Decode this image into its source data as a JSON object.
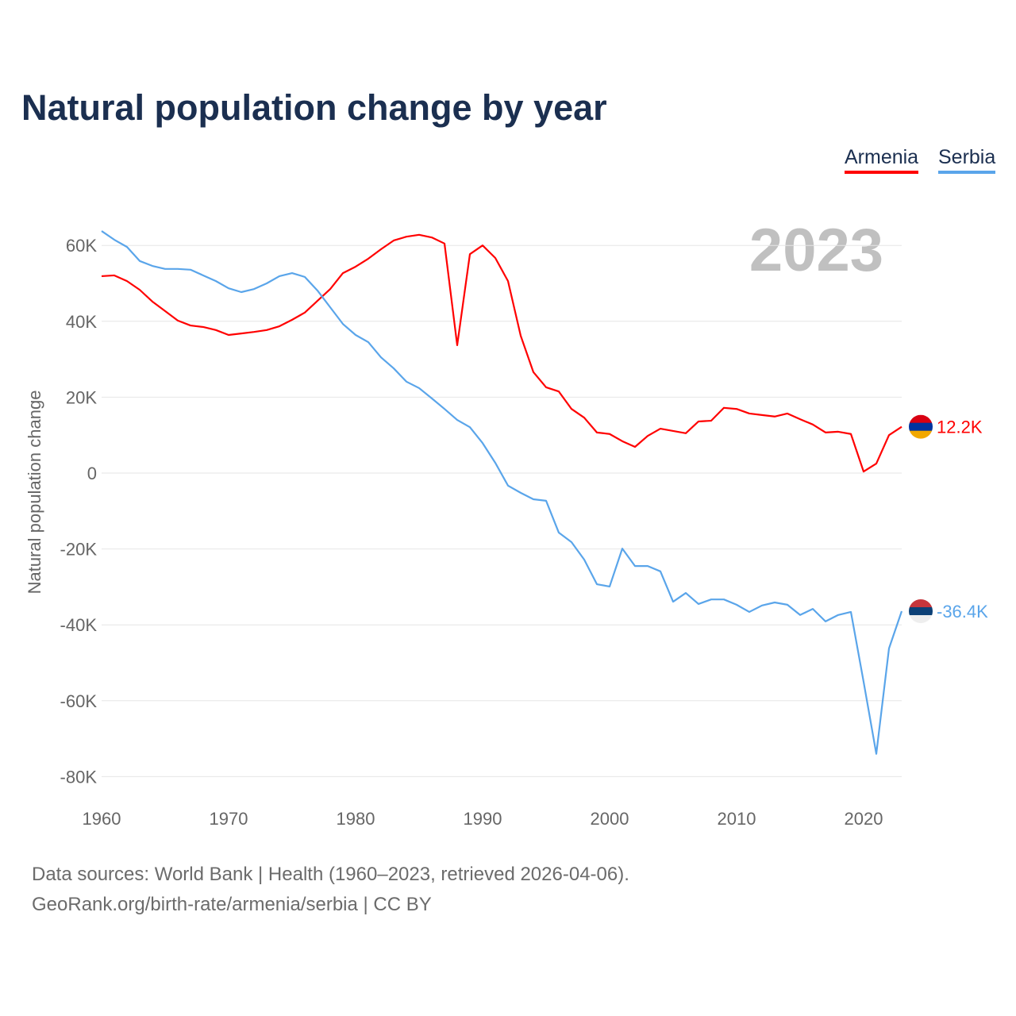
{
  "chart_data": {
    "type": "line",
    "title": "Natural population change by year",
    "xlabel": "",
    "ylabel": "Natural population change",
    "xlim": [
      1960,
      2023
    ],
    "ylim": [
      -80000,
      60000
    ],
    "y_ticks": [
      {
        "v": 60000,
        "label": "60K"
      },
      {
        "v": 40000,
        "label": "40K"
      },
      {
        "v": 20000,
        "label": "20K"
      },
      {
        "v": 0,
        "label": "0"
      },
      {
        "v": -20000,
        "label": "-20K"
      },
      {
        "v": -40000,
        "label": "-40K"
      },
      {
        "v": -60000,
        "label": "-60K"
      },
      {
        "v": -80000,
        "label": "-80K"
      }
    ],
    "x_ticks": [
      {
        "v": 1960,
        "label": "1960"
      },
      {
        "v": 1970,
        "label": "1970"
      },
      {
        "v": 1980,
        "label": "1980"
      },
      {
        "v": 1990,
        "label": "1990"
      },
      {
        "v": 2000,
        "label": "2000"
      },
      {
        "v": 2010,
        "label": "2010"
      },
      {
        "v": 2020,
        "label": "2020"
      }
    ],
    "grid": true,
    "legend_position": "top-right",
    "year_watermark": "2023",
    "x_start": 1960,
    "series": [
      {
        "name": "Armenia",
        "color": "#ff0000",
        "end_label": "12.2K",
        "values": [
          51.9,
          52.1,
          50.6,
          48.3,
          45.2,
          42.7,
          40.2,
          38.9,
          38.5,
          37.7,
          36.4,
          36.8,
          37.2,
          37.7,
          38.7,
          40.4,
          42.3,
          45.4,
          48.5,
          52.7,
          54.4,
          56.5,
          59.0,
          61.3,
          62.3,
          62.8,
          62.1,
          60.5,
          33.7,
          57.7,
          60.0,
          56.7,
          50.6,
          36.2,
          26.6,
          22.6,
          21.5,
          16.9,
          14.6,
          10.7,
          10.3,
          8.4,
          6.9,
          9.8,
          11.7,
          11.1,
          10.5,
          13.6,
          13.8,
          17.2,
          16.9,
          15.7,
          15.3,
          14.9,
          15.7,
          14.2,
          12.8,
          10.7,
          10.9,
          10.3,
          0.4,
          2.5,
          10.0,
          12.2
        ]
      },
      {
        "name": "Serbia",
        "color": "#5aa5ea",
        "end_label": "-36.4K",
        "values": [
          63.8,
          61.5,
          59.6,
          55.9,
          54.6,
          53.8,
          53.8,
          53.6,
          52.1,
          50.6,
          48.7,
          47.7,
          48.5,
          50.0,
          51.9,
          52.7,
          51.7,
          48.1,
          43.7,
          39.3,
          36.4,
          34.5,
          30.5,
          27.6,
          24.1,
          22.4,
          19.7,
          16.9,
          14.0,
          12.1,
          7.9,
          2.7,
          -3.3,
          -5.2,
          -6.9,
          -7.3,
          -15.7,
          -18.2,
          -22.8,
          -29.3,
          -29.9,
          -19.9,
          -24.5,
          -24.5,
          -25.9,
          -33.9,
          -31.6,
          -34.5,
          -33.3,
          -33.3,
          -34.7,
          -36.6,
          -34.9,
          -34.1,
          -34.7,
          -37.4,
          -35.8,
          -39.1,
          -37.4,
          -36.6,
          -55.0,
          -74.0,
          -46.2,
          -36.4
        ]
      }
    ],
    "value_unit": "thousands"
  },
  "footer": {
    "sources": "Data sources: World Bank | Health (1960–2023, retrieved 2026-04-06).",
    "credit": "GeoRank.org/birth-rate/armenia/serbia | CC BY"
  }
}
